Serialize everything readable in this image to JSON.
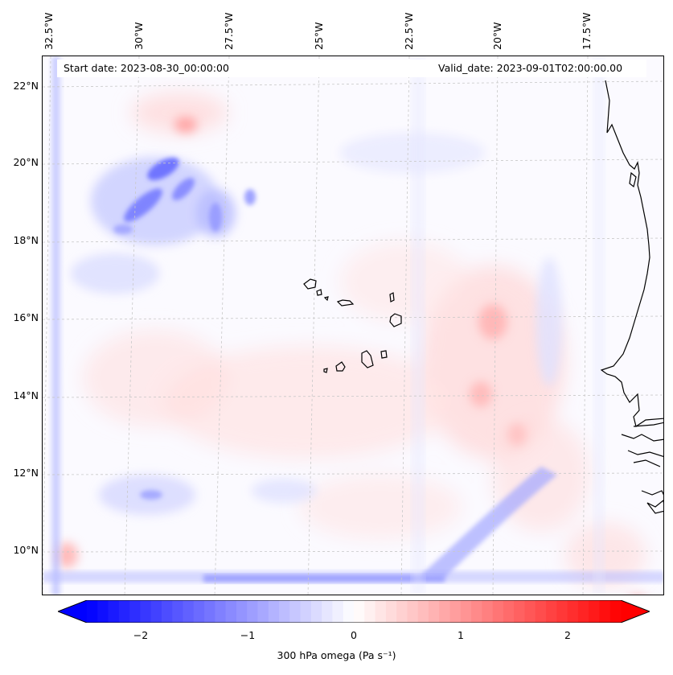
{
  "map": {
    "start_date_text": "Start date: 2023-08-30_00:00:00",
    "valid_date_text": "Valid_date: 2023-09-01T02:00:00.00",
    "lon_labels": [
      "32.5°W",
      "30°W",
      "27.5°W",
      "25°W",
      "22.5°W",
      "20°W",
      "17.5°W"
    ],
    "lat_labels": [
      "22°N",
      "20°N",
      "18°N",
      "16°N",
      "14°N",
      "12°N",
      "10°N"
    ],
    "extent": {
      "lon_min": -32.8,
      "lon_max": -15.5,
      "lat_min": 8.9,
      "lat_max": 22.7
    },
    "field_name": "300 hPa omega",
    "field_units": "Pa s⁻¹"
  },
  "colorbar": {
    "label": "300 hPa omega (Pa s$^{-1}$)",
    "label_display": "300 hPa omega (Pa s⁻¹)",
    "ticks": [
      "−2",
      "−1",
      "0",
      "1",
      "2"
    ],
    "vmin": -2.5,
    "vmax": 2.5,
    "cmap": "bwr",
    "low_color": "#0000ff",
    "mid_color": "#ffffff",
    "high_color": "#ff0000"
  },
  "colors": {
    "coastline": "#000000",
    "gridline": "#c8c8c8",
    "frame": "#000000"
  }
}
